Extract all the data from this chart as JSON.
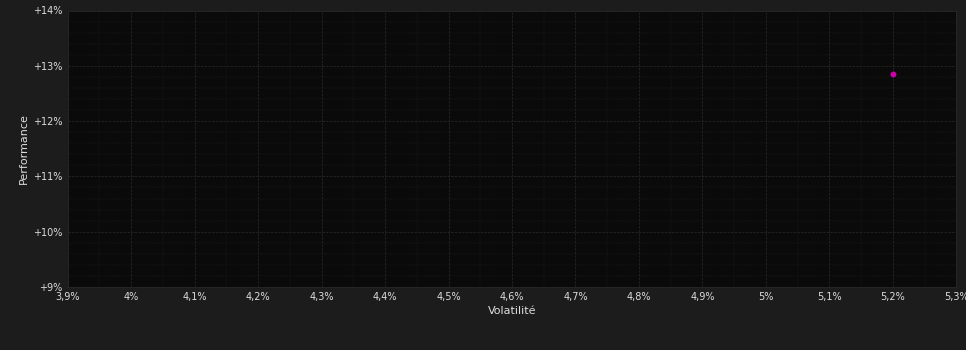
{
  "title": "",
  "xlabel": "Volatilité",
  "ylabel": "Performance",
  "background_color": "#1c1c1c",
  "plot_bg_color": "#0a0a0a",
  "figure_bg_color": "#1c1c1c",
  "grid_color": "#2a2a2a",
  "tick_color": "#dddddd",
  "label_color": "#dddddd",
  "point_x": 5.2,
  "point_y": 12.85,
  "point_color": "#cc00aa",
  "point_size": 18,
  "xlim": [
    3.9,
    5.3
  ],
  "ylim": [
    9.0,
    14.0
  ],
  "xticks": [
    3.9,
    4.0,
    4.1,
    4.2,
    4.3,
    4.4,
    4.5,
    4.6,
    4.7,
    4.8,
    4.9,
    5.0,
    5.1,
    5.2,
    5.3
  ],
  "yticks": [
    9,
    10,
    11,
    12,
    13,
    14
  ],
  "xlabel_fontsize": 8,
  "ylabel_fontsize": 8,
  "tick_fontsize": 7
}
